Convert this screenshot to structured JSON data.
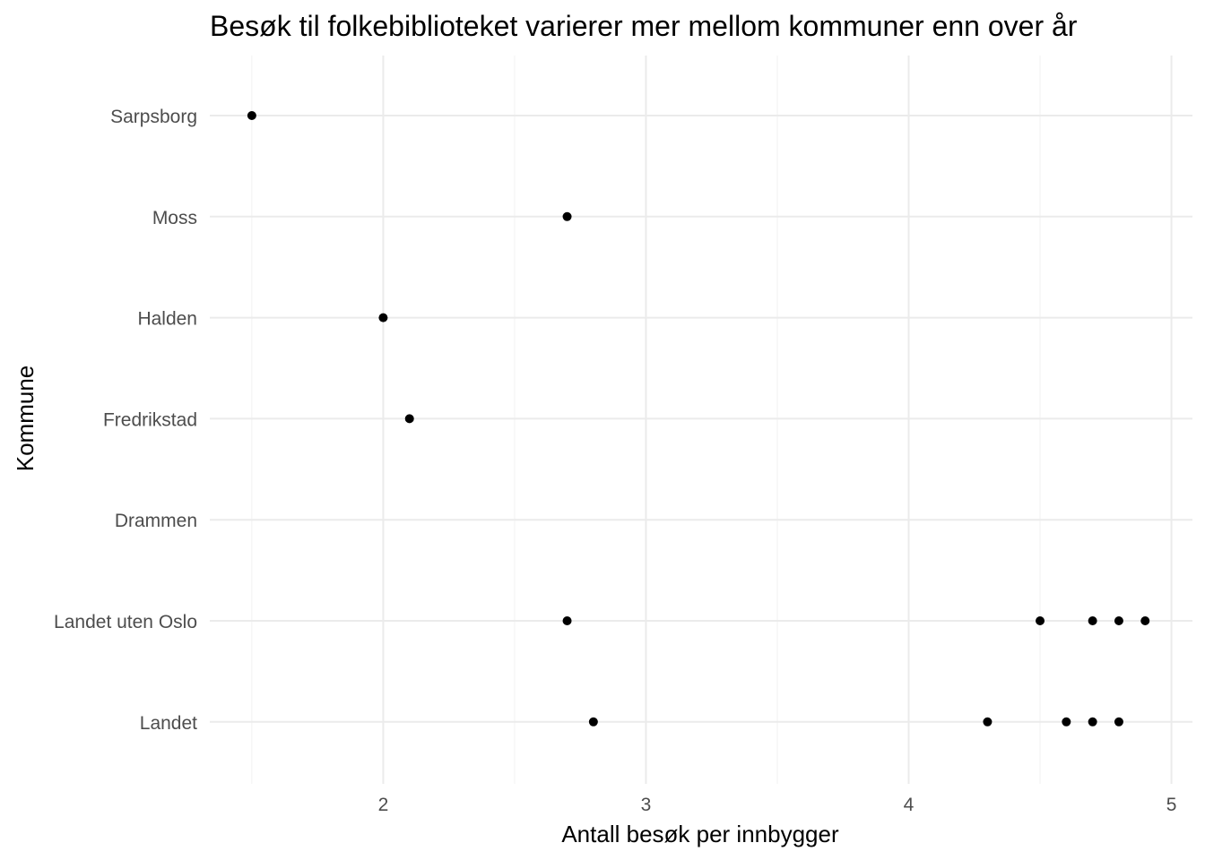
{
  "chart_data": {
    "type": "scatter",
    "title": "Besøk til folkebiblioteket varierer mer mellom kommuner enn over år",
    "xlabel": "Antall besøk per innbygger",
    "ylabel": "Kommune",
    "xlim": [
      1.34,
      5.08
    ],
    "xticks": [
      2,
      3,
      4,
      5
    ],
    "x_minor_ticks": [
      1.5,
      2.5,
      3.5,
      4.5
    ],
    "grid": true,
    "point_color": "#000000",
    "categories": [
      "Sarpsborg",
      "Moss",
      "Halden",
      "Fredrikstad",
      "Drammen",
      "Landet uten Oslo",
      "Landet"
    ],
    "points": [
      {
        "category": "Sarpsborg",
        "x": 1.5
      },
      {
        "category": "Moss",
        "x": 2.7
      },
      {
        "category": "Halden",
        "x": 2.0
      },
      {
        "category": "Fredrikstad",
        "x": 2.1
      },
      {
        "category": "Landet uten Oslo",
        "x": 2.7
      },
      {
        "category": "Landet uten Oslo",
        "x": 4.5
      },
      {
        "category": "Landet uten Oslo",
        "x": 4.7
      },
      {
        "category": "Landet uten Oslo",
        "x": 4.8
      },
      {
        "category": "Landet uten Oslo",
        "x": 4.9
      },
      {
        "category": "Landet",
        "x": 2.8
      },
      {
        "category": "Landet",
        "x": 4.3
      },
      {
        "category": "Landet",
        "x": 4.6
      },
      {
        "category": "Landet",
        "x": 4.7
      },
      {
        "category": "Landet",
        "x": 4.8
      }
    ]
  }
}
